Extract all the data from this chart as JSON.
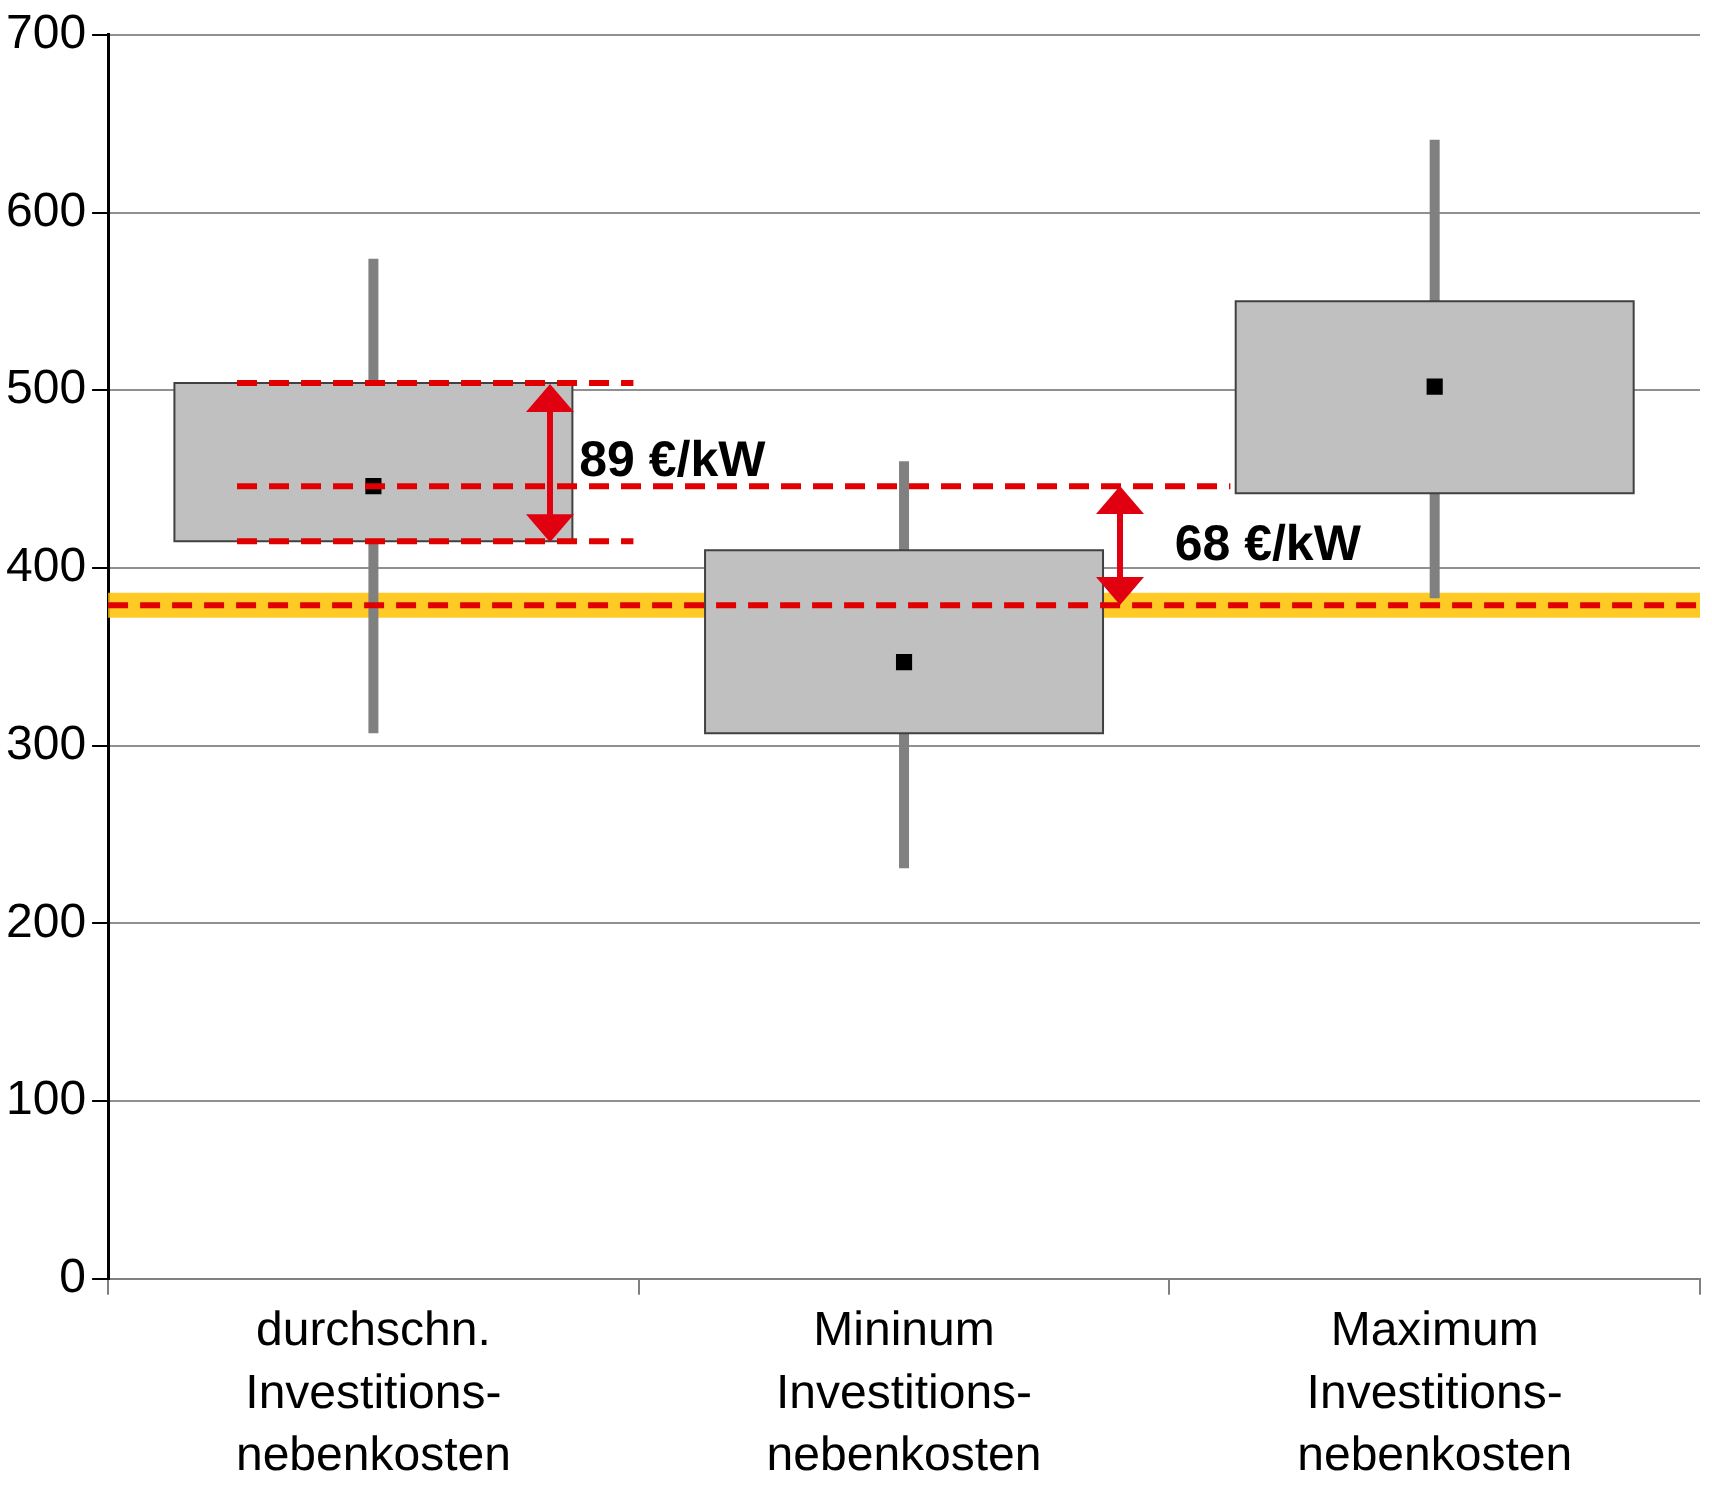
{
  "chart_data": {
    "type": "box",
    "categories": [
      "durchschn.\nInvestitions-\nnebenkosten",
      "Mininum\nInvestitions-\nnebenkosten",
      "Maximum\nInvestitions-\nnebenkosten"
    ],
    "boxes": [
      {
        "low": 307,
        "q1": 415,
        "q3": 504,
        "high": 574
      },
      {
        "low": 231,
        "q1": 307,
        "q3": 410,
        "high": 460
      },
      {
        "low": 383,
        "q1": 442,
        "q3": 550,
        "high": 641
      }
    ],
    "series": [
      {
        "type": "scatter",
        "x": [
          "durchschn.\nInvestitions-\nnebenkosten",
          "Mininum\nInvestitions-\nnebenkosten",
          "Maximum\nInvestitions-\nnebenkosten"
        ],
        "values": [
          446,
          347,
          502
        ],
        "color": "#000000",
        "marker": "square"
      }
    ],
    "color": "#c0c0c0",
    "ylim": [
      0,
      700
    ],
    "yticks": [
      0,
      100,
      200,
      300,
      400,
      500,
      600,
      700
    ],
    "grid": "y",
    "bands": [
      {
        "axis": "y",
        "from": 372,
        "to": 386,
        "color": "#ffc000"
      }
    ],
    "ref_lines": [
      {
        "axis": "y",
        "value": 379,
        "color": "#e00000",
        "line_style": "dashed"
      },
      {
        "axis": "y",
        "value": 504,
        "color": "#e00000",
        "line_style": "dashed"
      },
      {
        "axis": "y",
        "value": 446,
        "color": "#e00000",
        "line_style": "dashed"
      },
      {
        "axis": "y",
        "value": 415,
        "color": "#e00000",
        "line_style": "dashed"
      }
    ],
    "annotations": [
      "89 €/kW",
      "68 €/kW"
    ]
  }
}
